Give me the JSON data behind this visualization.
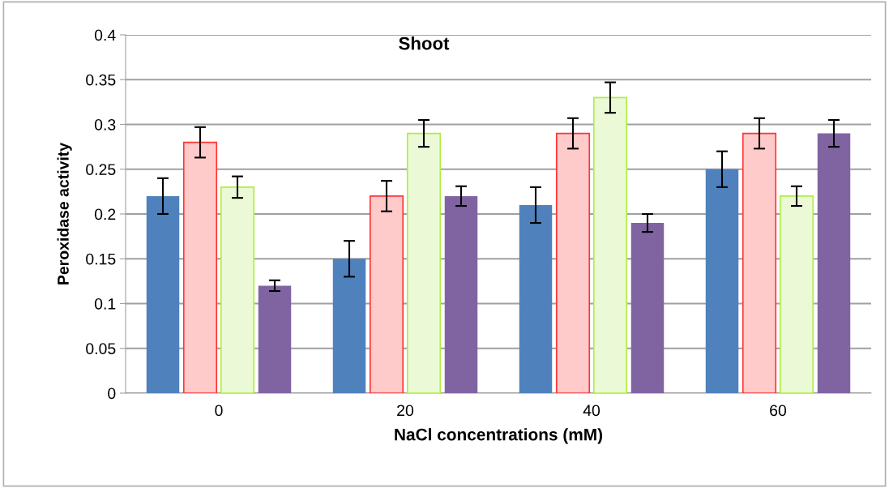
{
  "chart_data": {
    "type": "bar",
    "title": "Shoot",
    "xlabel": "NaCl concentrations (mM)",
    "ylabel": "Peroxidase activity",
    "categories": [
      "0",
      "20",
      "40",
      "60"
    ],
    "series": [
      {
        "color": "#4f81bd",
        "values": [
          0.22,
          0.15,
          0.21,
          0.25
        ],
        "errors": [
          0.02,
          0.02,
          0.02,
          0.02
        ]
      },
      {
        "color": "#ffcaca",
        "values": [
          0.28,
          0.22,
          0.29,
          0.29
        ],
        "errors": [
          0.017,
          0.017,
          0.017,
          0.017
        ]
      },
      {
        "color": "#ecf9d6",
        "values": [
          0.23,
          0.29,
          0.33,
          0.22
        ],
        "errors": [
          0.012,
          0.015,
          0.017,
          0.011
        ]
      },
      {
        "color": "#8064a2",
        "values": [
          0.12,
          0.22,
          0.19,
          0.29
        ],
        "errors": [
          0.006,
          0.011,
          0.01,
          0.015
        ]
      }
    ],
    "ylim": [
      0,
      0.4
    ],
    "yticks": [
      0,
      0.05,
      0.1,
      0.15,
      0.2,
      0.25,
      0.3,
      0.35,
      0.4
    ],
    "grid": "y",
    "legend": false
  }
}
